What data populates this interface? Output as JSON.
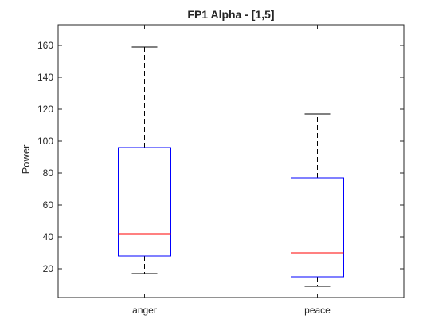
{
  "chart_data": {
    "type": "box",
    "title": "FP1 Alpha - [1,5]",
    "xlabel": "",
    "ylabel": "Power",
    "ylim": [
      2,
      173
    ],
    "yticks": [
      20,
      40,
      60,
      80,
      100,
      120,
      140,
      160
    ],
    "grid": false,
    "categories": [
      "anger",
      "peace"
    ],
    "boxes": [
      {
        "category": "anger",
        "whisker_low": 17,
        "q1": 28,
        "median": 42,
        "q3": 96,
        "whisker_high": 159
      },
      {
        "category": "peace",
        "whisker_low": 9,
        "q1": 15,
        "median": 30,
        "q3": 77,
        "whisker_high": 117
      }
    ],
    "colors": {
      "box": "#0000ff",
      "median": "#ff0000",
      "whisker": "#000000",
      "axis": "#262626"
    }
  }
}
